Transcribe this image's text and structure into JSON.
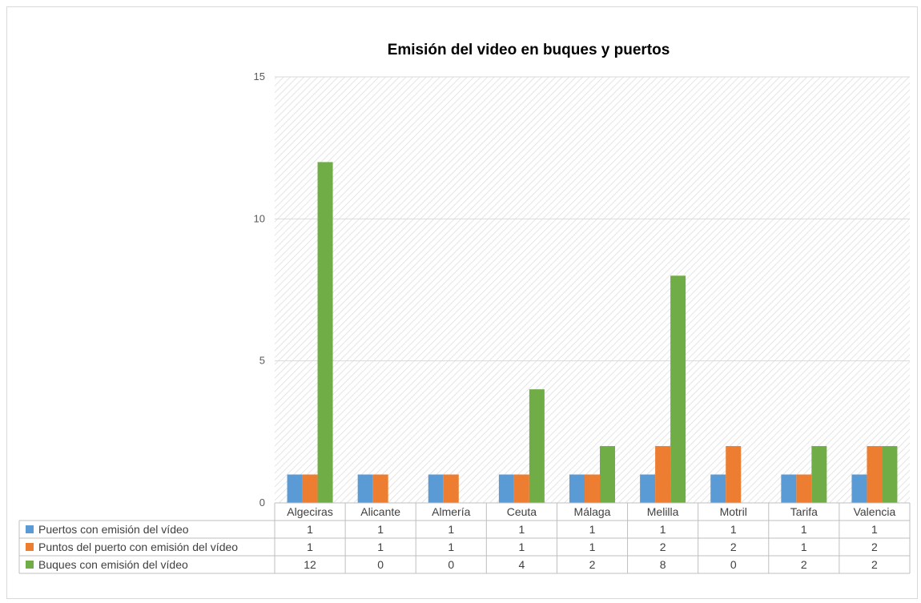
{
  "chart_data": {
    "type": "bar",
    "title": "Emisión del video en buques y puertos",
    "categories": [
      "Algeciras",
      "Alicante",
      "Almería",
      "Ceuta",
      "Málaga",
      "Melilla",
      "Motril",
      "Tarifa",
      "Valencia"
    ],
    "series": [
      {
        "name": "Puertos con emisión del vídeo",
        "values": [
          1,
          1,
          1,
          1,
          1,
          1,
          1,
          1,
          1
        ],
        "color": "#5b9bd5"
      },
      {
        "name": "Puntos del puerto con  emisión del vídeo",
        "values": [
          1,
          1,
          1,
          1,
          1,
          2,
          2,
          1,
          2
        ],
        "color": "#ed7d31"
      },
      {
        "name": "Buques con emisión del vídeo",
        "values": [
          12,
          0,
          0,
          4,
          2,
          8,
          0,
          2,
          2
        ],
        "color": "#70ad47"
      }
    ],
    "ylim": [
      0,
      15
    ],
    "yticks": [
      0,
      5,
      10,
      15
    ],
    "grid": true,
    "legend": "data-table",
    "plot_background": "diagonal-hatch"
  }
}
